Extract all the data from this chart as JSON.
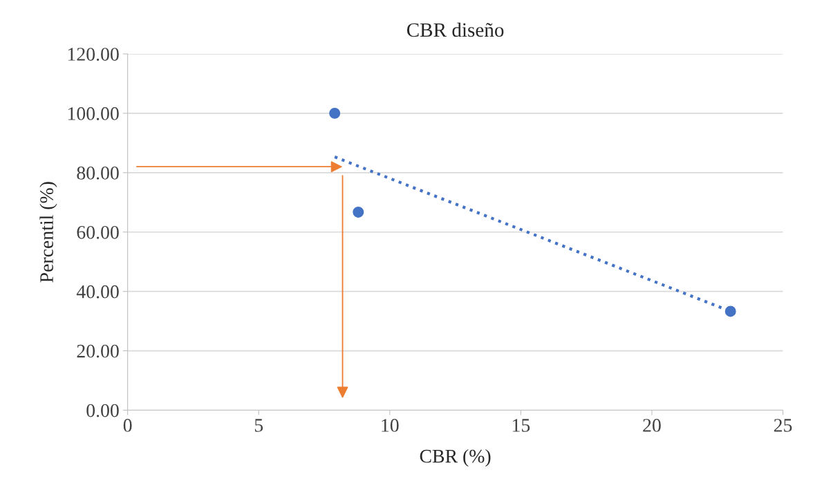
{
  "chart_data": {
    "type": "scatter",
    "title": "CBR diseño",
    "xlabel": "CBR (%)",
    "ylabel": "Percentil (%)",
    "xlim": [
      0,
      25
    ],
    "xticks": [
      0,
      5,
      10,
      15,
      20,
      25
    ],
    "ylim": [
      0,
      120
    ],
    "yticks": [
      {
        "value": 0,
        "label": "0.00"
      },
      {
        "value": 20,
        "label": "20.00"
      },
      {
        "value": 40,
        "label": "40.00"
      },
      {
        "value": 60,
        "label": "60.00"
      },
      {
        "value": 80,
        "label": "80.00"
      },
      {
        "value": 100,
        "label": "100.00"
      },
      {
        "value": 120,
        "label": "120.00"
      }
    ],
    "grid": "y",
    "legend": false,
    "marker": "circle",
    "series": [
      {
        "color": "#4472c4",
        "x": [
          7.9,
          8.8,
          23.0
        ],
        "values": [
          100.0,
          66.7,
          33.3
        ]
      },
      {
        "type": "line",
        "color": "#4472c4",
        "line_style": "dotted",
        "marker": "none",
        "x": [
          7.9,
          22.8
        ],
        "values": [
          85.3,
          34.0
        ]
      },
      {
        "type": "line",
        "color": "#ed7d31",
        "line_style": "solid",
        "marker": "none",
        "x": [
          0.35,
          8.2
        ],
        "values": [
          82,
          82
        ]
      },
      {
        "type": "line",
        "color": "#ed7d31",
        "line_style": "solid",
        "marker": "none",
        "x": [
          8.2,
          8.2
        ],
        "values": [
          79,
          4
        ]
      }
    ]
  }
}
